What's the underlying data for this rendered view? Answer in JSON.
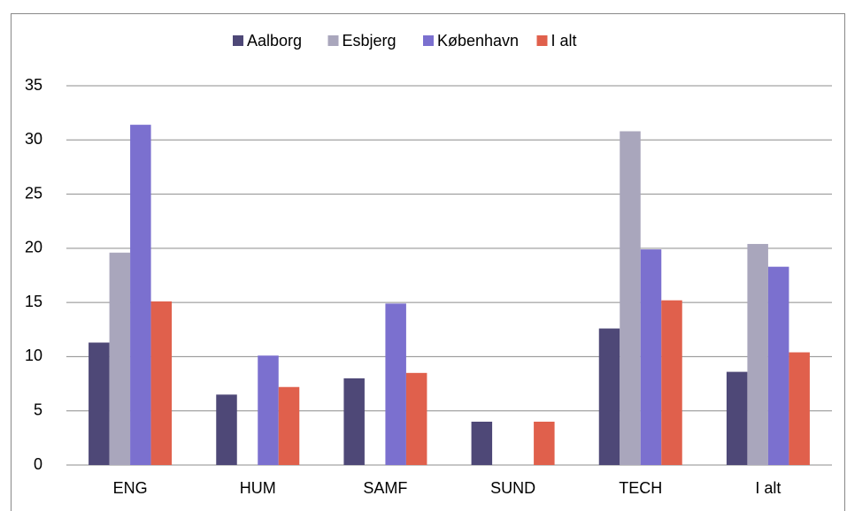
{
  "chart_data": {
    "type": "bar",
    "categories": [
      "ENG",
      "HUM",
      "SAMF",
      "SUND",
      "TECH",
      "I alt"
    ],
    "series": [
      {
        "name": "Aalborg",
        "color": "#4e4877",
        "values": [
          11.3,
          6.5,
          8.0,
          4.0,
          12.6,
          8.6
        ]
      },
      {
        "name": "Esbjerg",
        "color": "#a9a6bc",
        "values": [
          19.6,
          null,
          null,
          null,
          30.8,
          20.4
        ]
      },
      {
        "name": "København",
        "color": "#7b70cf",
        "values": [
          31.4,
          10.1,
          14.9,
          null,
          19.9,
          18.3
        ]
      },
      {
        "name": "I alt",
        "color": "#e0604c",
        "values": [
          15.1,
          7.2,
          8.5,
          4.0,
          15.2,
          10.4
        ]
      }
    ],
    "ylim": [
      0,
      35
    ],
    "yticks": [
      0,
      5,
      10,
      15,
      20,
      25,
      30,
      35
    ],
    "grid": true,
    "legend": "top"
  }
}
